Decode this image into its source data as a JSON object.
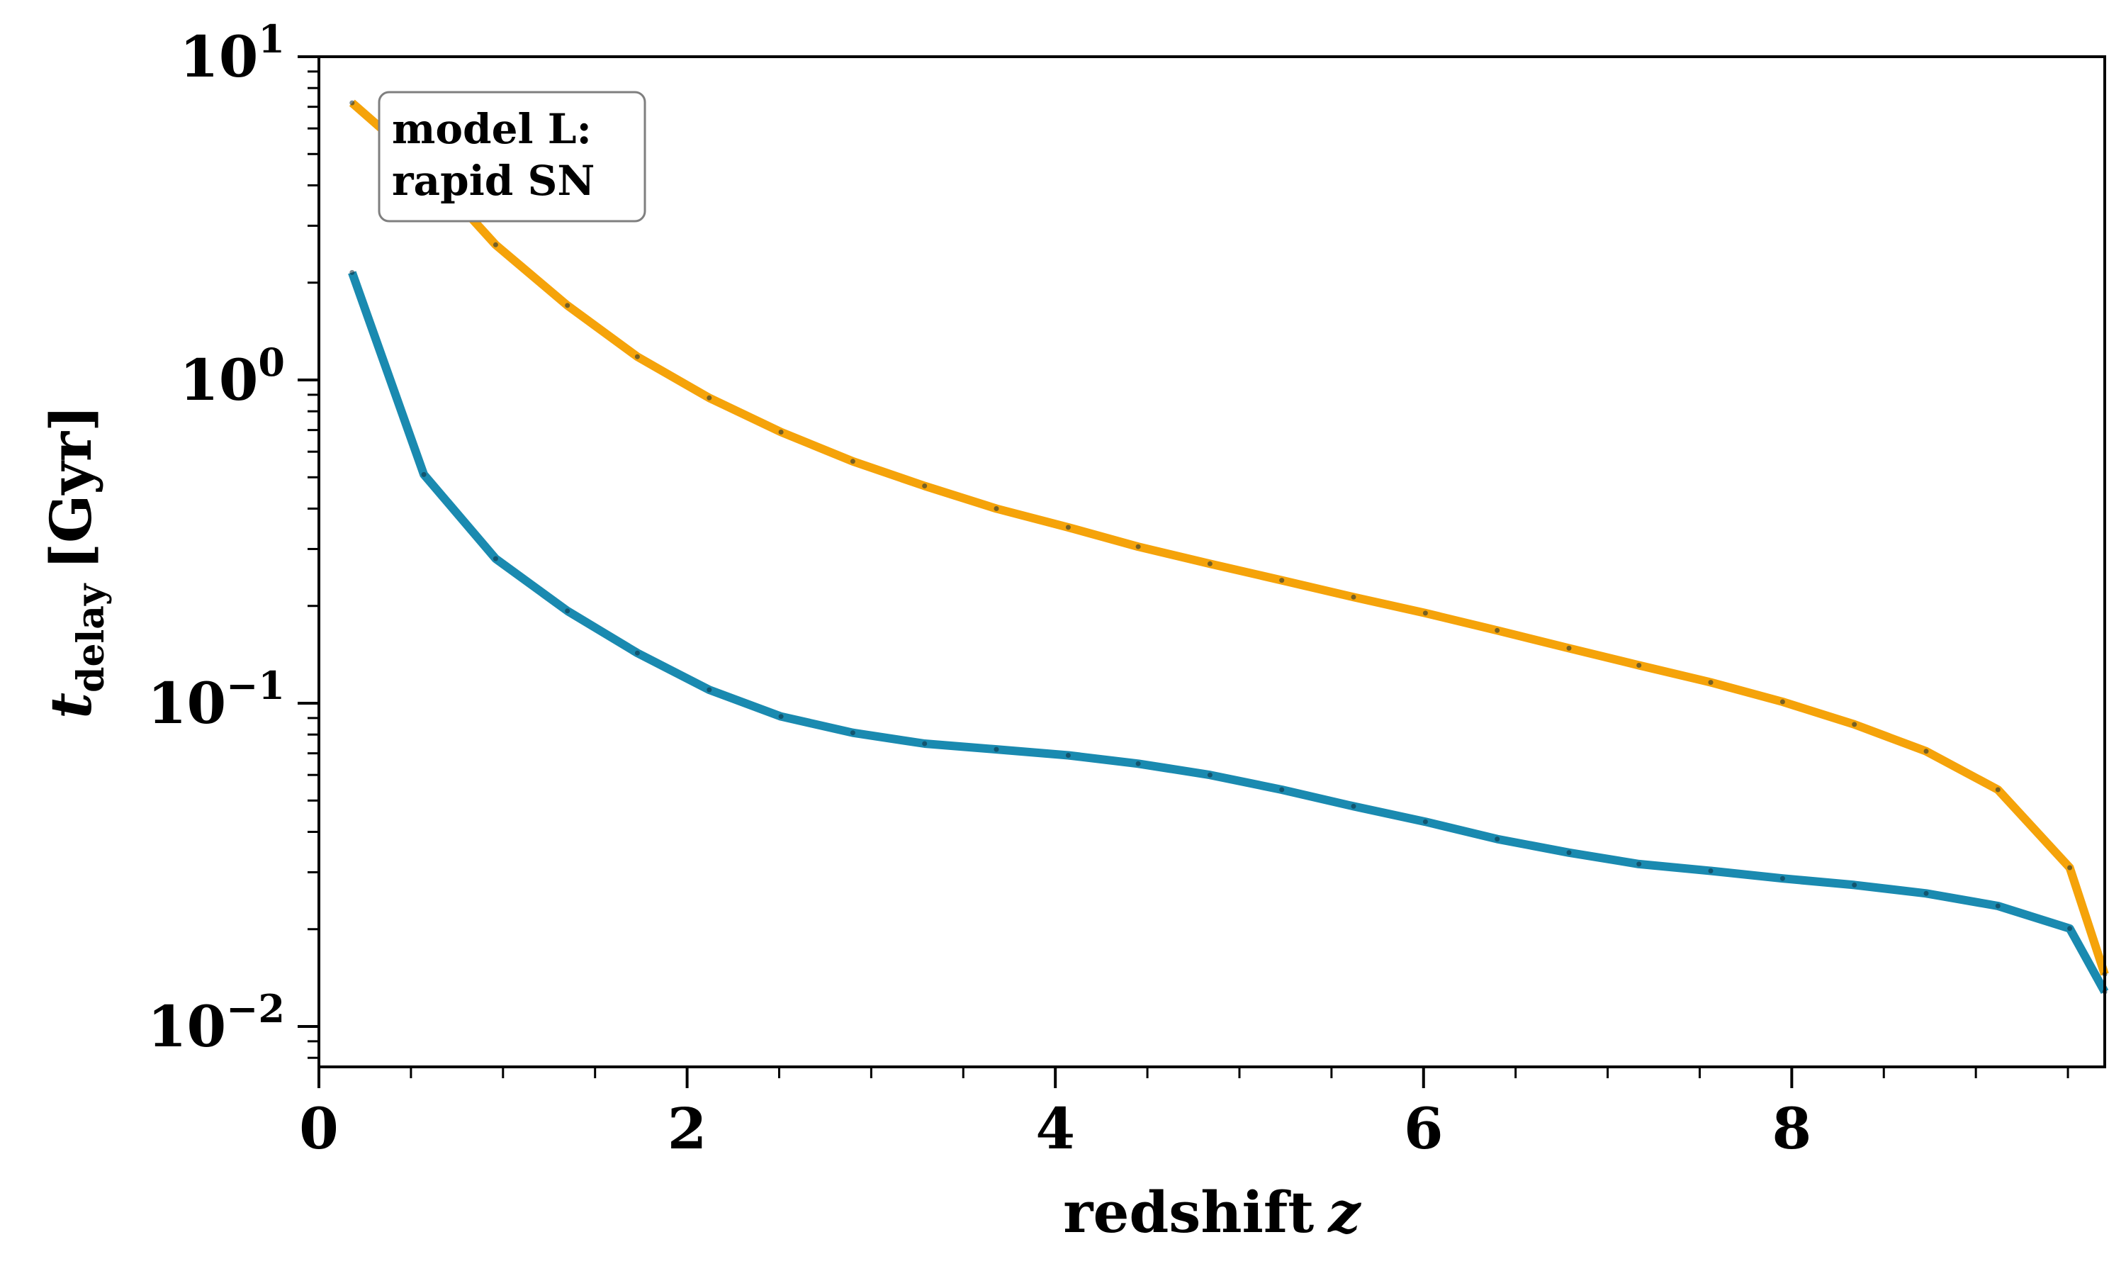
{
  "chart_data": {
    "type": "line",
    "xlabel": "redshift",
    "xlabel_var": "z",
    "ylabel_main": "t",
    "ylabel_sub": "delay",
    "ylabel_unit": "[Gyr]",
    "yscale": "log",
    "xlim": [
      0,
      9.7
    ],
    "ylim": [
      0.0075,
      10
    ],
    "x_ticks": [
      0,
      2,
      4,
      6,
      8
    ],
    "x_tick_labels": [
      "0",
      "2",
      "4",
      "6",
      "8"
    ],
    "y_ticks": [
      0.01,
      0.1,
      1,
      10
    ],
    "y_tick_labels": [
      {
        "base": "10",
        "exp": "−2"
      },
      {
        "base": "10",
        "exp": "−1"
      },
      {
        "base": "10",
        "exp": "0"
      },
      {
        "base": "10",
        "exp": "1"
      }
    ],
    "annotation": [
      "model L:",
      "rapid SN"
    ],
    "grid": false,
    "series": [
      {
        "color": "#f5a30a",
        "x": [
          0.18,
          0.57,
          0.96,
          1.35,
          1.73,
          2.12,
          2.51,
          2.9,
          3.29,
          3.68,
          4.07,
          4.45,
          4.84,
          5.23,
          5.62,
          6.01,
          6.4,
          6.79,
          7.17,
          7.56,
          7.95,
          8.34,
          8.73,
          9.12,
          9.51,
          9.7
        ],
        "y": [
          7.2,
          4.6,
          2.62,
          1.7,
          1.18,
          0.88,
          0.69,
          0.56,
          0.47,
          0.4,
          0.35,
          0.305,
          0.27,
          0.24,
          0.213,
          0.19,
          0.168,
          0.148,
          0.131,
          0.116,
          0.101,
          0.086,
          0.071,
          0.054,
          0.031,
          0.0145
        ]
      },
      {
        "color": "#1a8ab0",
        "x": [
          0.18,
          0.57,
          0.96,
          1.35,
          1.73,
          2.12,
          2.51,
          2.9,
          3.29,
          3.68,
          4.07,
          4.45,
          4.84,
          5.23,
          5.62,
          6.01,
          6.4,
          6.79,
          7.17,
          7.56,
          7.95,
          8.34,
          8.73,
          9.12,
          9.51,
          9.7
        ],
        "y": [
          2.15,
          0.51,
          0.28,
          0.193,
          0.143,
          0.11,
          0.091,
          0.081,
          0.075,
          0.072,
          0.069,
          0.065,
          0.06,
          0.054,
          0.048,
          0.043,
          0.038,
          0.0345,
          0.0318,
          0.0303,
          0.0287,
          0.0274,
          0.0258,
          0.0236,
          0.0201,
          0.0128
        ]
      }
    ]
  }
}
